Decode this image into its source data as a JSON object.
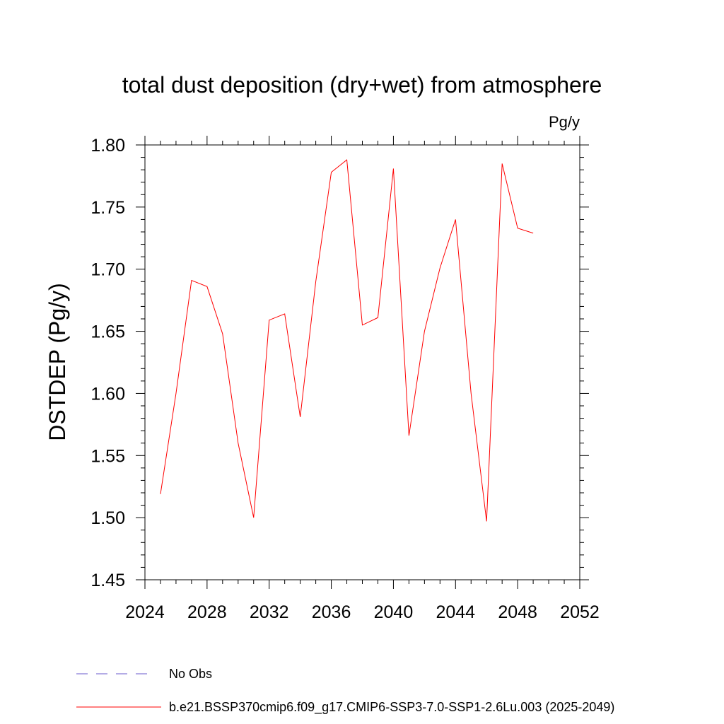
{
  "chart_data": {
    "type": "line",
    "title": "total dust deposition (dry+wet) from atmosphere",
    "units_label": "Pg/y",
    "ylabel": "DSTDEP  (Pg/y)",
    "xlabel": "",
    "xlim": [
      2024,
      2052
    ],
    "ylim": [
      1.45,
      1.8
    ],
    "x_ticks": [
      2024,
      2028,
      2032,
      2036,
      2040,
      2044,
      2048,
      2052
    ],
    "x_tick_labels": [
      "2024",
      "2028",
      "2032",
      "2036",
      "2040",
      "2044",
      "2048",
      "2052"
    ],
    "y_ticks": [
      1.45,
      1.5,
      1.55,
      1.6,
      1.65,
      1.7,
      1.75,
      1.8
    ],
    "y_tick_labels": [
      "1.45",
      "1.50",
      "1.55",
      "1.60",
      "1.65",
      "1.70",
      "1.75",
      "1.80"
    ],
    "grid": false,
    "legend_placement": "bottom",
    "series": [
      {
        "name": "b.e21.BSSP370cmip6.f09_g17.CMIP6-SSP3-7.0-SSP1-2.6Lu.003 (2025-2049)",
        "color": "#ff0000",
        "style": "solid",
        "x": [
          2025,
          2026,
          2027,
          2028,
          2029,
          2030,
          2031,
          2032,
          2033,
          2034,
          2035,
          2036,
          2037,
          2038,
          2039,
          2040,
          2041,
          2042,
          2043,
          2044,
          2045,
          2046,
          2047,
          2048,
          2049
        ],
        "y": [
          1.519,
          1.6,
          1.691,
          1.686,
          1.648,
          1.56,
          1.5,
          1.659,
          1.664,
          1.581,
          1.69,
          1.778,
          1.788,
          1.655,
          1.661,
          1.781,
          1.566,
          1.65,
          1.701,
          1.74,
          1.6,
          1.497,
          1.785,
          1.733,
          1.729
        ]
      }
    ],
    "legend": [
      {
        "label": "No Obs",
        "color": "#6a5acd",
        "style": "dashed"
      },
      {
        "label": "b.e21.BSSP370cmip6.f09_g17.CMIP6-SSP3-7.0-SSP1-2.6Lu.003 (2025-2049)",
        "color": "#ff0000",
        "style": "solid"
      }
    ]
  }
}
